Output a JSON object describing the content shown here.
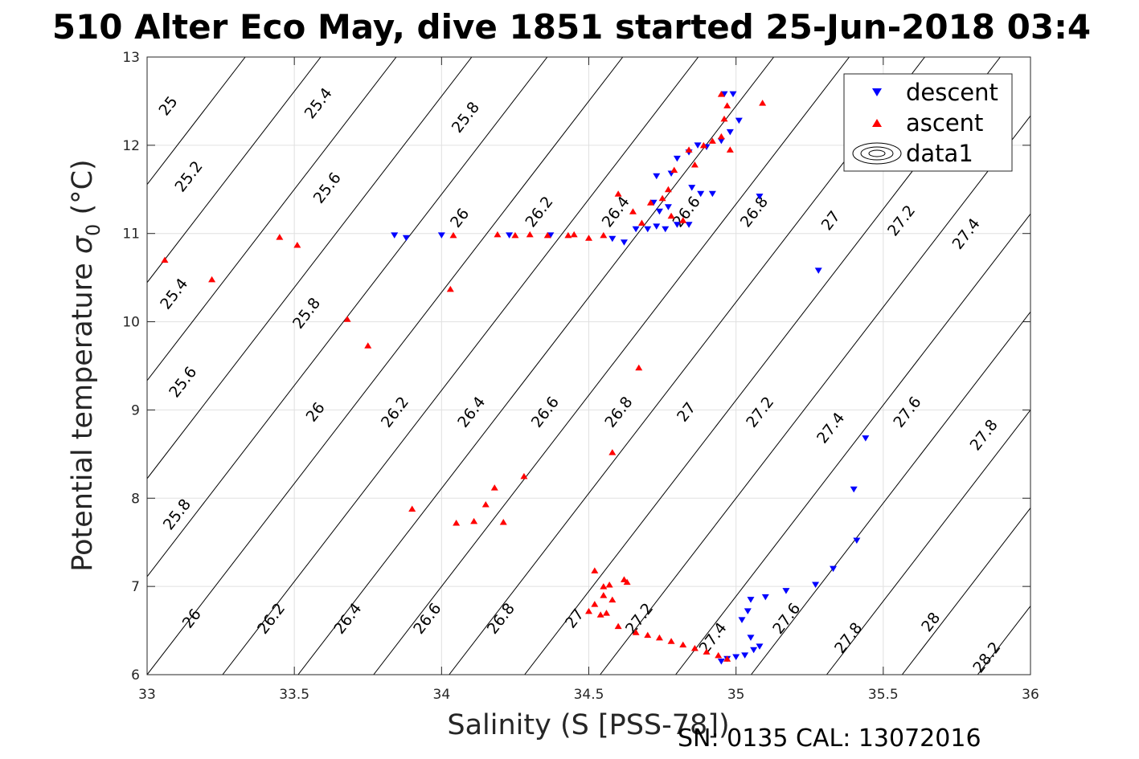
{
  "chart_data": {
    "type": "scatter",
    "title": "510 Alter Eco May, dive 1851 started 25-Jun-2018 03:4",
    "xlabel": "Salinity (S [PSS-78])",
    "ylabel_prefix": "Potential temperature ",
    "ylabel_sigma": "σ",
    "ylabel_sub": "0",
    "ylabel_suffix": " (°C)",
    "footer": "SN: 0135  CAL: 13072016",
    "xlim": [
      33,
      36
    ],
    "ylim": [
      6,
      13
    ],
    "xticks": [
      33,
      33.5,
      34,
      34.5,
      35,
      35.5,
      36
    ],
    "xtick_labels": [
      "33",
      "33.5",
      "34",
      "34.5",
      "35",
      "35.5",
      "36"
    ],
    "yticks": [
      6,
      7,
      8,
      9,
      10,
      11,
      12,
      13
    ],
    "ytick_labels": [
      "6",
      "7",
      "8",
      "9",
      "10",
      "11",
      "12",
      "13"
    ],
    "grid": true,
    "legend_position": "top-right",
    "contour_levels": [
      25,
      25.2,
      25.4,
      25.6,
      25.8,
      26,
      26.2,
      26.4,
      26.6,
      26.8,
      27,
      27.2,
      27.4,
      27.6,
      27.8,
      28,
      28.2
    ],
    "contour_labels": [
      {
        "text": "25",
        "x": 33.07,
        "y": 12.45
      },
      {
        "text": "25.4",
        "x": 33.58,
        "y": 12.48
      },
      {
        "text": "25.8",
        "x": 34.08,
        "y": 12.32
      },
      {
        "text": "25.2",
        "x": 33.14,
        "y": 11.65
      },
      {
        "text": "25.6",
        "x": 33.61,
        "y": 11.52
      },
      {
        "text": "26",
        "x": 34.06,
        "y": 11.18
      },
      {
        "text": "26.2",
        "x": 34.33,
        "y": 11.25
      },
      {
        "text": "26.4",
        "x": 34.59,
        "y": 11.25
      },
      {
        "text": "26.6",
        "x": 34.83,
        "y": 11.25
      },
      {
        "text": "26.8",
        "x": 35.06,
        "y": 11.25
      },
      {
        "text": "27",
        "x": 35.32,
        "y": 11.15
      },
      {
        "text": "27.2",
        "x": 35.56,
        "y": 11.15
      },
      {
        "text": "27.4",
        "x": 35.78,
        "y": 11.0
      },
      {
        "text": "25.4",
        "x": 33.09,
        "y": 10.32
      },
      {
        "text": "25.8",
        "x": 33.54,
        "y": 10.1
      },
      {
        "text": "25.6",
        "x": 33.12,
        "y": 9.32
      },
      {
        "text": "26",
        "x": 33.57,
        "y": 8.98
      },
      {
        "text": "26.2",
        "x": 33.84,
        "y": 8.98
      },
      {
        "text": "26.4",
        "x": 34.1,
        "y": 8.98
      },
      {
        "text": "26.6",
        "x": 34.35,
        "y": 8.98
      },
      {
        "text": "26.8",
        "x": 34.6,
        "y": 8.98
      },
      {
        "text": "27",
        "x": 34.83,
        "y": 8.98
      },
      {
        "text": "27.2",
        "x": 35.08,
        "y": 8.98
      },
      {
        "text": "27.4",
        "x": 35.32,
        "y": 8.8
      },
      {
        "text": "27.6",
        "x": 35.58,
        "y": 8.98
      },
      {
        "text": "27.8",
        "x": 35.84,
        "y": 8.72
      },
      {
        "text": "25.8",
        "x": 33.1,
        "y": 7.82
      },
      {
        "text": "26",
        "x": 33.15,
        "y": 6.64
      },
      {
        "text": "26.2",
        "x": 33.42,
        "y": 6.64
      },
      {
        "text": "26.4",
        "x": 33.68,
        "y": 6.64
      },
      {
        "text": "26.6",
        "x": 33.95,
        "y": 6.64
      },
      {
        "text": "26.8",
        "x": 34.2,
        "y": 6.64
      },
      {
        "text": "27",
        "x": 34.45,
        "y": 6.64
      },
      {
        "text": "27.2",
        "x": 34.67,
        "y": 6.64
      },
      {
        "text": "27.4",
        "x": 34.92,
        "y": 6.42
      },
      {
        "text": "27.6",
        "x": 35.17,
        "y": 6.64
      },
      {
        "text": "27.8",
        "x": 35.38,
        "y": 6.42
      },
      {
        "text": "28",
        "x": 35.66,
        "y": 6.6
      },
      {
        "text": "28.2",
        "x": 35.85,
        "y": 6.2
      }
    ],
    "series": [
      {
        "name": "descent",
        "color": "#0000ff",
        "marker": "triangle-down",
        "points": [
          [
            33.84,
            10.98
          ],
          [
            33.88,
            10.95
          ],
          [
            34.0,
            10.98
          ],
          [
            34.23,
            10.98
          ],
          [
            34.37,
            10.98
          ],
          [
            34.58,
            10.94
          ],
          [
            34.62,
            10.9
          ],
          [
            34.66,
            11.05
          ],
          [
            34.7,
            11.05
          ],
          [
            34.73,
            11.08
          ],
          [
            34.76,
            11.05
          ],
          [
            34.8,
            11.1
          ],
          [
            34.84,
            11.1
          ],
          [
            34.74,
            11.25
          ],
          [
            34.77,
            11.3
          ],
          [
            34.72,
            11.35
          ],
          [
            34.73,
            11.65
          ],
          [
            34.78,
            11.68
          ],
          [
            34.85,
            11.52
          ],
          [
            34.88,
            11.45
          ],
          [
            34.92,
            11.45
          ],
          [
            34.8,
            11.85
          ],
          [
            34.84,
            11.92
          ],
          [
            34.87,
            12.0
          ],
          [
            34.9,
            11.98
          ],
          [
            34.95,
            12.05
          ],
          [
            34.98,
            12.15
          ],
          [
            35.01,
            12.28
          ],
          [
            34.99,
            12.58
          ],
          [
            34.96,
            12.58
          ],
          [
            35.08,
            11.42
          ],
          [
            35.28,
            10.58
          ],
          [
            34.95,
            6.15
          ],
          [
            34.97,
            6.18
          ],
          [
            35.0,
            6.2
          ],
          [
            35.03,
            6.22
          ],
          [
            35.06,
            6.28
          ],
          [
            35.05,
            6.42
          ],
          [
            35.04,
            6.72
          ],
          [
            35.05,
            6.85
          ],
          [
            35.1,
            6.88
          ],
          [
            35.17,
            6.95
          ],
          [
            35.27,
            7.02
          ],
          [
            35.33,
            7.2
          ],
          [
            35.41,
            7.52
          ],
          [
            35.4,
            8.1
          ],
          [
            35.44,
            8.68
          ],
          [
            35.02,
            6.62
          ],
          [
            35.08,
            6.32
          ]
        ]
      },
      {
        "name": "ascent",
        "color": "#ff0000",
        "marker": "triangle-up",
        "points": [
          [
            33.06,
            10.7
          ],
          [
            33.22,
            10.48
          ],
          [
            33.45,
            10.96
          ],
          [
            33.51,
            10.87
          ],
          [
            33.68,
            10.03
          ],
          [
            33.75,
            9.73
          ],
          [
            33.9,
            7.88
          ],
          [
            34.03,
            10.37
          ],
          [
            34.05,
            7.72
          ],
          [
            34.11,
            7.74
          ],
          [
            34.15,
            7.93
          ],
          [
            34.18,
            8.12
          ],
          [
            34.21,
            7.73
          ],
          [
            34.28,
            8.25
          ],
          [
            34.58,
            8.52
          ],
          [
            34.67,
            9.48
          ],
          [
            34.04,
            10.98
          ],
          [
            34.19,
            10.99
          ],
          [
            34.25,
            10.98
          ],
          [
            34.3,
            10.99
          ],
          [
            34.36,
            10.98
          ],
          [
            34.43,
            10.98
          ],
          [
            34.45,
            10.99
          ],
          [
            34.5,
            10.95
          ],
          [
            34.55,
            10.98
          ],
          [
            34.6,
            11.45
          ],
          [
            34.65,
            11.25
          ],
          [
            34.68,
            11.12
          ],
          [
            34.71,
            11.35
          ],
          [
            34.75,
            11.4
          ],
          [
            34.78,
            11.2
          ],
          [
            34.82,
            11.15
          ],
          [
            34.77,
            11.5
          ],
          [
            34.79,
            11.72
          ],
          [
            34.84,
            11.95
          ],
          [
            34.86,
            11.78
          ],
          [
            34.89,
            12.0
          ],
          [
            34.92,
            12.05
          ],
          [
            34.95,
            12.1
          ],
          [
            34.96,
            12.3
          ],
          [
            34.97,
            12.45
          ],
          [
            34.95,
            12.58
          ],
          [
            35.09,
            12.48
          ],
          [
            34.98,
            11.95
          ],
          [
            34.5,
            6.72
          ],
          [
            34.52,
            6.8
          ],
          [
            34.55,
            6.9
          ],
          [
            34.57,
            7.02
          ],
          [
            34.62,
            7.08
          ],
          [
            34.54,
            6.68
          ],
          [
            34.56,
            6.7
          ],
          [
            34.6,
            6.55
          ],
          [
            34.66,
            6.48
          ],
          [
            34.7,
            6.45
          ],
          [
            34.74,
            6.42
          ],
          [
            34.78,
            6.38
          ],
          [
            34.82,
            6.34
          ],
          [
            34.86,
            6.3
          ],
          [
            34.9,
            6.26
          ],
          [
            34.94,
            6.22
          ],
          [
            34.97,
            6.18
          ],
          [
            34.52,
            7.18
          ],
          [
            34.55,
            7.0
          ],
          [
            34.58,
            6.85
          ],
          [
            34.63,
            7.05
          ]
        ]
      }
    ],
    "legend": [
      {
        "label": "descent",
        "color": "#0000ff",
        "marker": "triangle-down"
      },
      {
        "label": "ascent",
        "color": "#ff0000",
        "marker": "triangle-up"
      },
      {
        "label": "data1",
        "color": "#000000",
        "marker": "contour"
      }
    ]
  }
}
